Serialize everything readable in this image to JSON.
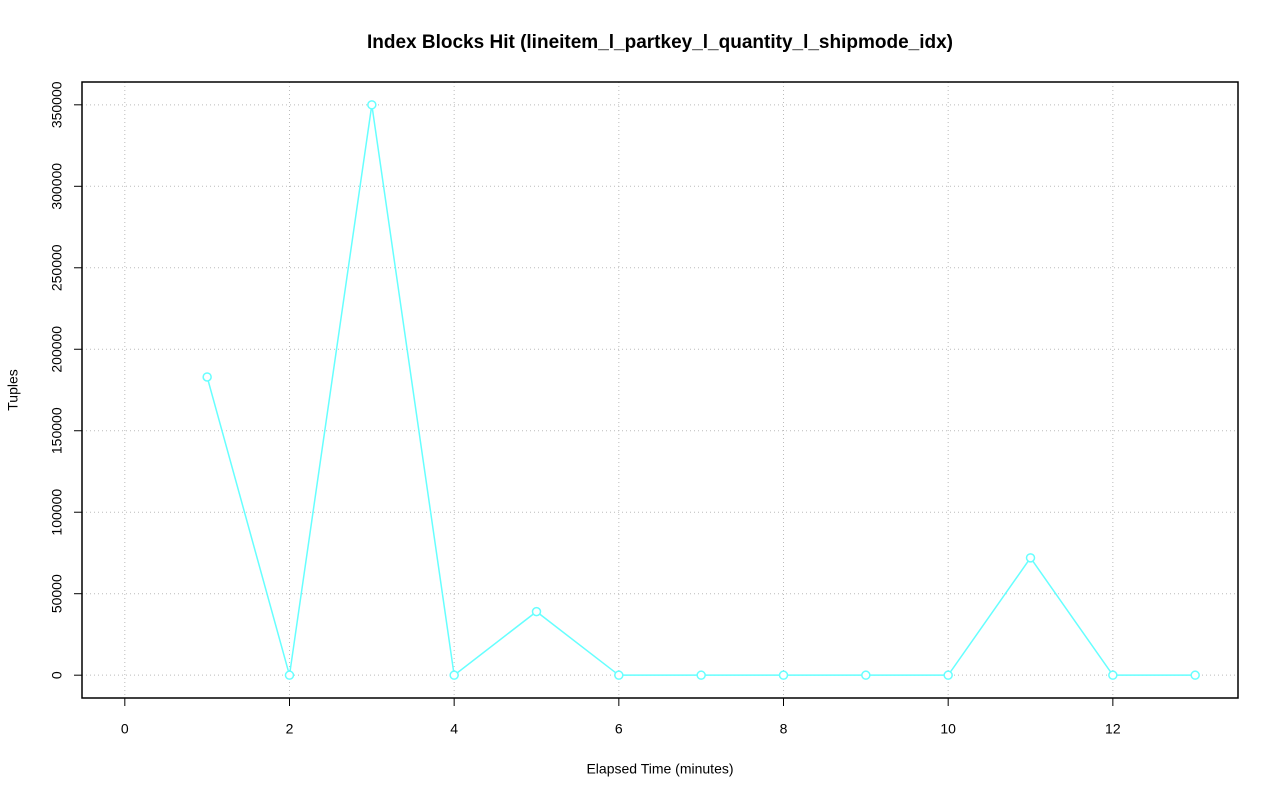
{
  "chart_data": {
    "type": "line",
    "title": "Index Blocks Hit (lineitem_l_partkey_l_quantity_l_shipmode_idx)",
    "xlabel": "Elapsed Time (minutes)",
    "ylabel": "Tuples",
    "x": [
      1,
      2,
      3,
      4,
      5,
      6,
      7,
      8,
      9,
      10,
      11,
      12,
      13
    ],
    "series": [
      {
        "color": "#66ffff",
        "values": [
          183000,
          0,
          350000,
          0,
          39000,
          0,
          0,
          0,
          0,
          0,
          72000,
          0,
          0
        ]
      }
    ],
    "xlim": [
      -0.52,
      13.52
    ],
    "ylim": [
      -14000,
      364000
    ],
    "xticks": [
      0,
      2,
      4,
      6,
      8,
      10,
      12
    ],
    "yticks": [
      0,
      50000,
      100000,
      150000,
      200000,
      250000,
      300000,
      350000
    ],
    "grid": true
  }
}
